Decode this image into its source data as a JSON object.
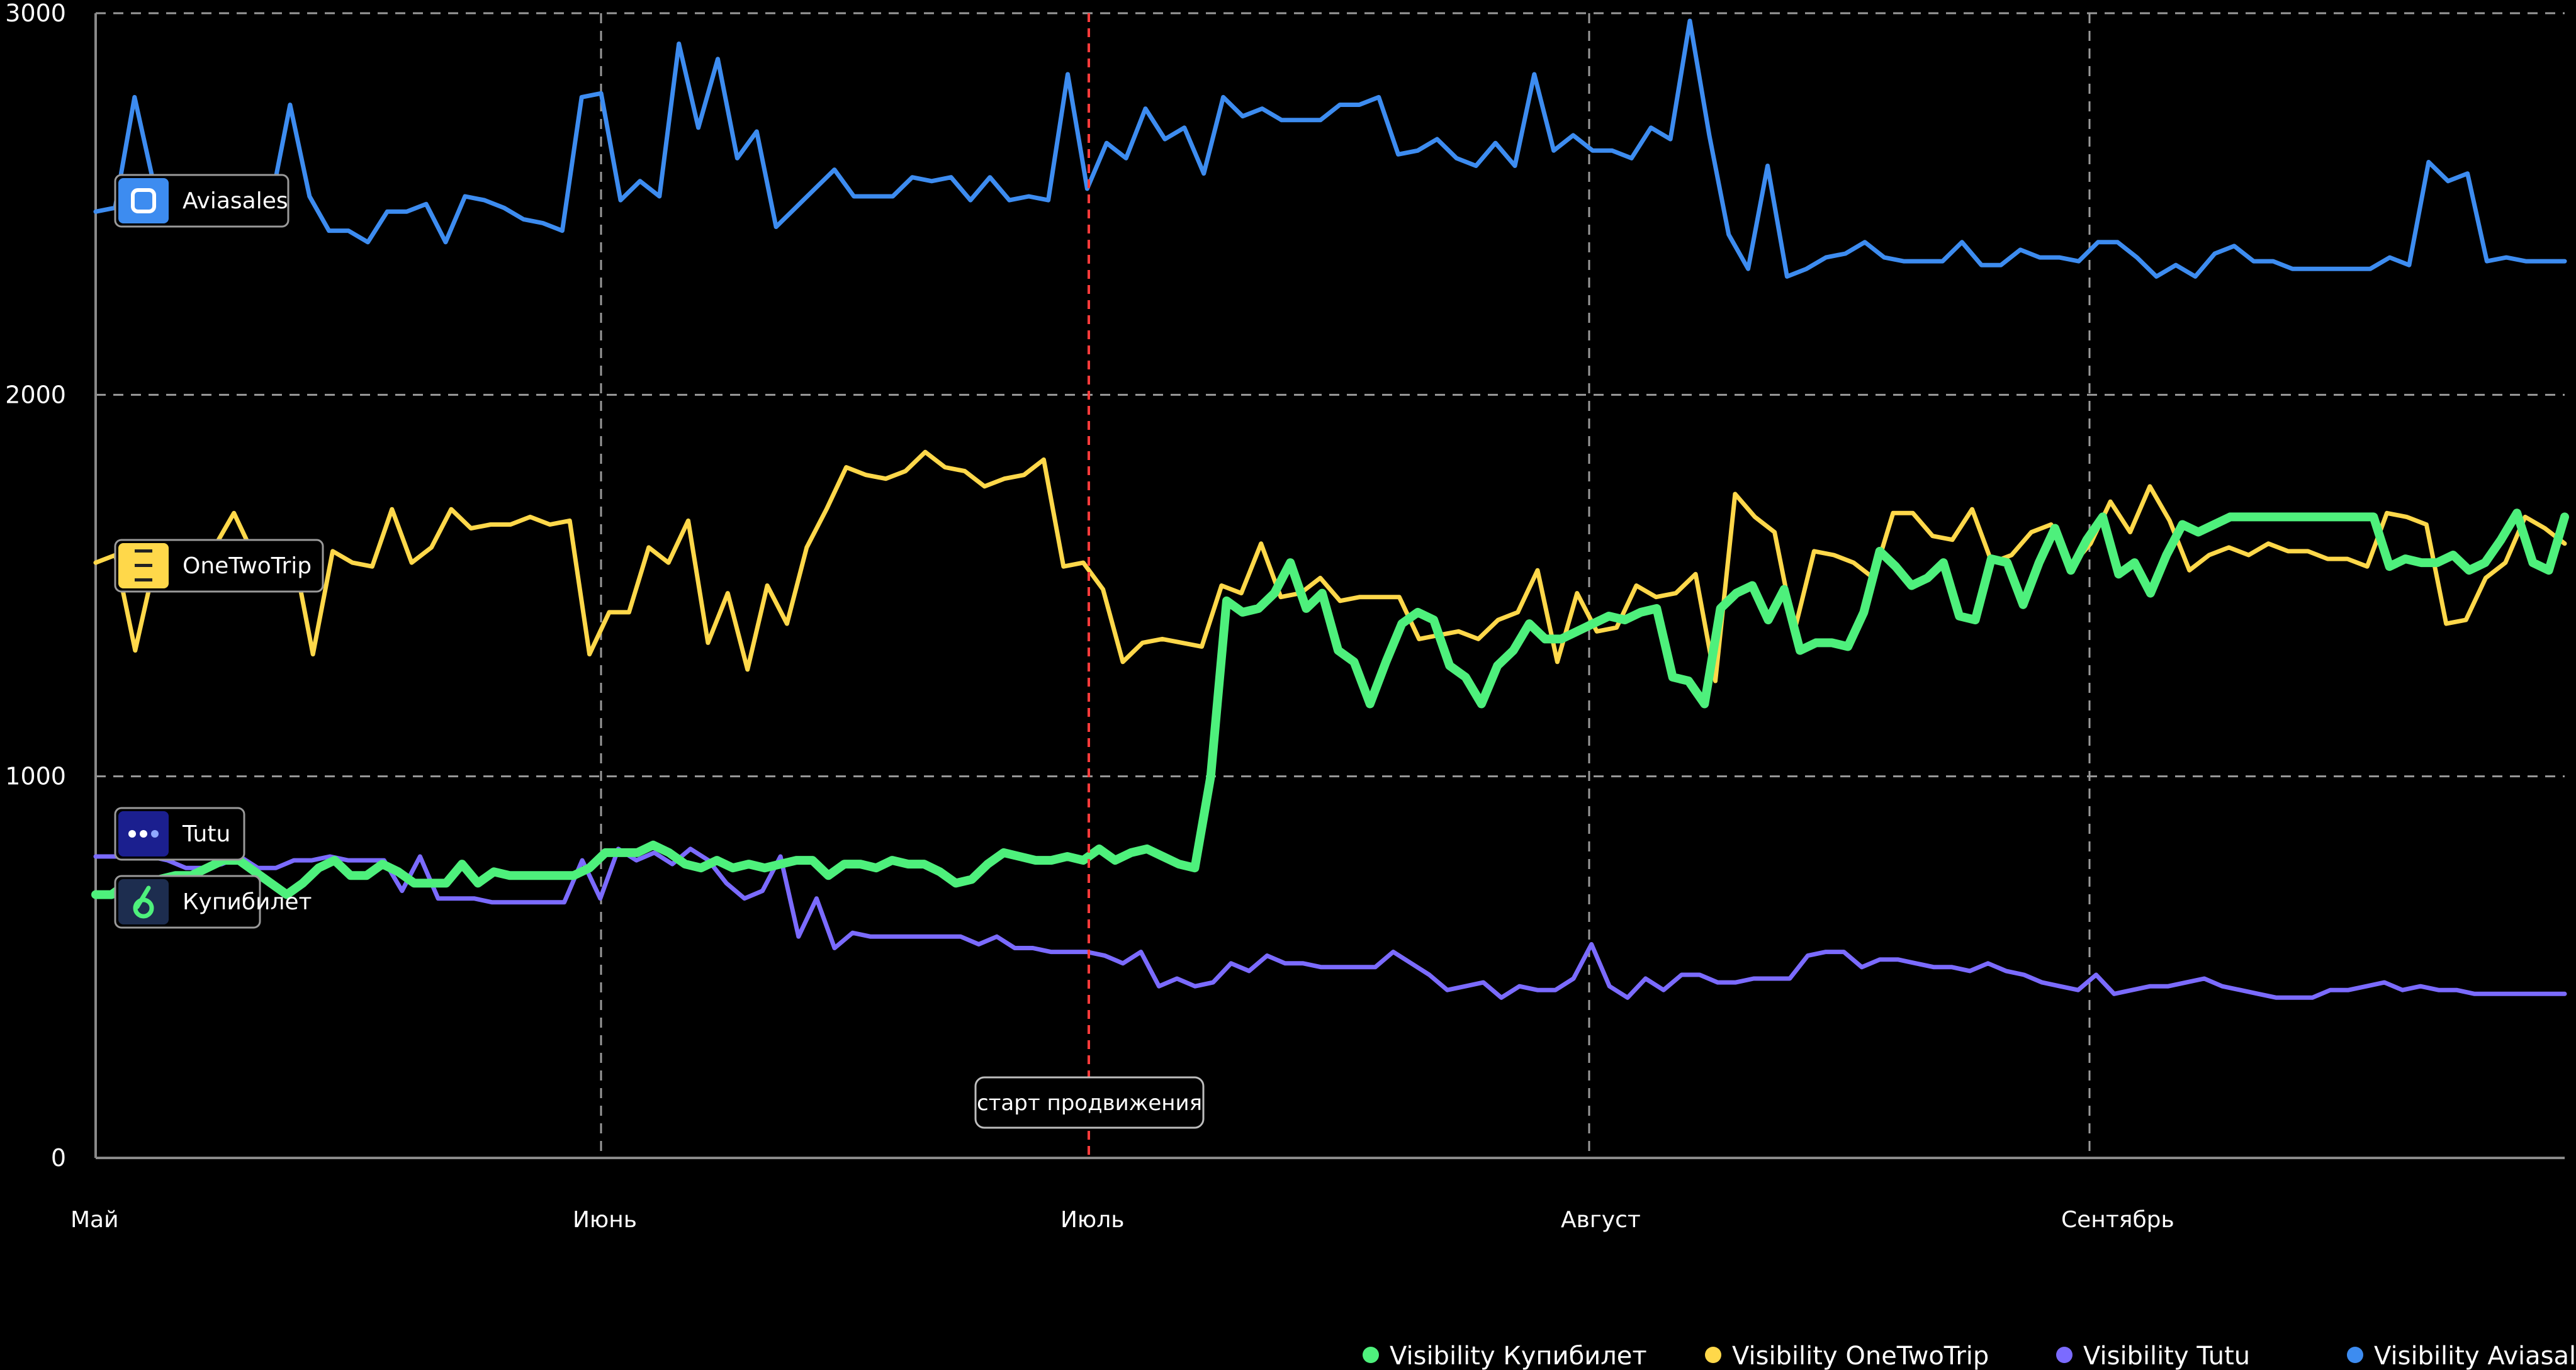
{
  "chart_data": {
    "type": "line",
    "title": "",
    "xlabel": "",
    "ylabel": "",
    "ylim": [
      0,
      3000
    ],
    "y_ticks": [
      "0",
      "1000",
      "2000",
      "3000"
    ],
    "x_tick_labels": [
      "Май",
      "Июнь",
      "Июль",
      "Август",
      "Сентябрь"
    ],
    "grid": "dashed",
    "legend_position": "bottom-right",
    "annotation": {
      "label": "старт продвижения",
      "x_label": "Июль",
      "color": "#ff3b3b"
    },
    "series": [
      {
        "name": "Visibility Купибилет",
        "brand": "Купибилет",
        "color": "#4ef07c",
        "values": [
          690,
          690,
          720,
          720,
          730,
          740,
          740,
          760,
          780,
          780,
          750,
          720,
          690,
          720,
          760,
          780,
          740,
          740,
          770,
          750,
          720,
          720,
          720,
          770,
          720,
          750,
          740,
          740,
          740,
          740,
          740,
          760,
          800,
          800,
          800,
          820,
          800,
          770,
          760,
          780,
          760,
          770,
          760,
          770,
          780,
          780,
          740,
          770,
          770,
          760,
          780,
          770,
          770,
          750,
          720,
          730,
          770,
          800,
          790,
          780,
          780,
          790,
          780,
          810,
          780,
          800,
          810,
          790,
          770,
          760,
          1000,
          1460,
          1430,
          1440,
          1480,
          1560,
          1440,
          1480,
          1330,
          1300,
          1190,
          1300,
          1400,
          1430,
          1410,
          1290,
          1260,
          1190,
          1290,
          1330,
          1400,
          1360,
          1360,
          1380,
          1400,
          1420,
          1410,
          1430,
          1440,
          1260,
          1250,
          1190,
          1440,
          1480,
          1500,
          1410,
          1490,
          1330,
          1350,
          1350,
          1340,
          1430,
          1590,
          1550,
          1500,
          1520,
          1560,
          1420,
          1410,
          1570,
          1560,
          1450,
          1560,
          1650,
          1540,
          1620,
          1680,
          1530,
          1560,
          1480,
          1580,
          1660,
          1640,
          1660,
          1680,
          1680,
          1680,
          1680,
          1680,
          1680,
          1680,
          1680,
          1680,
          1680,
          1550,
          1570,
          1560,
          1560,
          1580,
          1540,
          1560,
          1620,
          1690,
          1560,
          1540,
          1680
        ]
      },
      {
        "name": "Visibility OneTwoTrip",
        "brand": "OneTwoTrip",
        "color": "#ffd84a",
        "values": [
          1560,
          1580,
          1330,
          1560,
          1600,
          1570,
          1600,
          1690,
          1580,
          1580,
          1590,
          1320,
          1590,
          1560,
          1550,
          1700,
          1560,
          1600,
          1700,
          1650,
          1660,
          1660,
          1680,
          1660,
          1670,
          1320,
          1430,
          1430,
          1600,
          1560,
          1670,
          1350,
          1480,
          1280,
          1500,
          1400,
          1600,
          1700,
          1810,
          1790,
          1780,
          1800,
          1850,
          1810,
          1800,
          1760,
          1780,
          1790,
          1830,
          1550,
          1560,
          1490,
          1300,
          1350,
          1360,
          1350,
          1340,
          1500,
          1480,
          1610,
          1470,
          1480,
          1520,
          1460,
          1470,
          1470,
          1470,
          1360,
          1370,
          1380,
          1360,
          1410,
          1430,
          1540,
          1300,
          1480,
          1380,
          1390,
          1500,
          1470,
          1480,
          1530,
          1250,
          1740,
          1680,
          1640,
          1380,
          1590,
          1580,
          1560,
          1520,
          1690,
          1690,
          1630,
          1620,
          1700,
          1560,
          1580,
          1640,
          1660,
          1550,
          1610,
          1720,
          1640,
          1760,
          1670,
          1540,
          1580,
          1600,
          1580,
          1610,
          1590,
          1590,
          1570,
          1570,
          1550,
          1690,
          1680,
          1660,
          1400,
          1410,
          1520,
          1560,
          1680,
          1650,
          1610
        ]
      },
      {
        "name": "Visibility Tutu",
        "brand": "Tutu",
        "color": "#7b6bff",
        "values": [
          790,
          790,
          790,
          790,
          780,
          760,
          760,
          770,
          790,
          760,
          760,
          780,
          780,
          790,
          780,
          780,
          780,
          700,
          790,
          680,
          680,
          680,
          670,
          670,
          670,
          670,
          670,
          780,
          680,
          810,
          780,
          800,
          770,
          810,
          780,
          720,
          680,
          700,
          790,
          580,
          680,
          550,
          590,
          580,
          580,
          580,
          580,
          580,
          580,
          560,
          580,
          550,
          550,
          540,
          540,
          540,
          530,
          510,
          540,
          450,
          470,
          450,
          460,
          510,
          490,
          530,
          510,
          510,
          500,
          500,
          500,
          500,
          540,
          510,
          480,
          440,
          450,
          460,
          420,
          450,
          440,
          440,
          470,
          560,
          450,
          420,
          470,
          440,
          480,
          480,
          460,
          460,
          470,
          470,
          470,
          530,
          540,
          540,
          500,
          520,
          520,
          510,
          500,
          500,
          490,
          510,
          490,
          480,
          460,
          450,
          440,
          480,
          430,
          440,
          450,
          450,
          460,
          470,
          450,
          440,
          430,
          420,
          420,
          420,
          440,
          440,
          450,
          460,
          440,
          450,
          440,
          440,
          430,
          430,
          430,
          430,
          430,
          430
        ]
      },
      {
        "name": "Visibility Aviasales",
        "brand": "Aviasales",
        "color": "#3d8cf0",
        "values": [
          2480,
          2490,
          2780,
          2550,
          2500,
          2530,
          2500,
          2500,
          2530,
          2500,
          2760,
          2520,
          2430,
          2430,
          2400,
          2480,
          2480,
          2500,
          2400,
          2520,
          2510,
          2490,
          2460,
          2450,
          2430,
          2780,
          2790,
          2510,
          2560,
          2520,
          2920,
          2700,
          2880,
          2620,
          2690,
          2440,
          2490,
          2540,
          2590,
          2520,
          2520,
          2520,
          2570,
          2560,
          2570,
          2510,
          2570,
          2510,
          2520,
          2510,
          2840,
          2540,
          2660,
          2620,
          2750,
          2670,
          2700,
          2580,
          2780,
          2730,
          2750,
          2720,
          2720,
          2720,
          2760,
          2760,
          2780,
          2630,
          2640,
          2670,
          2620,
          2600,
          2660,
          2600,
          2840,
          2640,
          2680,
          2640,
          2640,
          2620,
          2700,
          2670,
          2980,
          2680,
          2420,
          2330,
          2600,
          2310,
          2330,
          2360,
          2370,
          2400,
          2360,
          2350,
          2350,
          2350,
          2400,
          2340,
          2340,
          2380,
          2360,
          2360,
          2350,
          2400,
          2400,
          2360,
          2310,
          2340,
          2310,
          2370,
          2390,
          2350,
          2350,
          2330,
          2330,
          2330,
          2330,
          2330,
          2360,
          2340,
          2610,
          2560,
          2580,
          2350,
          2360,
          2350,
          2350,
          2350
        ]
      }
    ]
  }
}
